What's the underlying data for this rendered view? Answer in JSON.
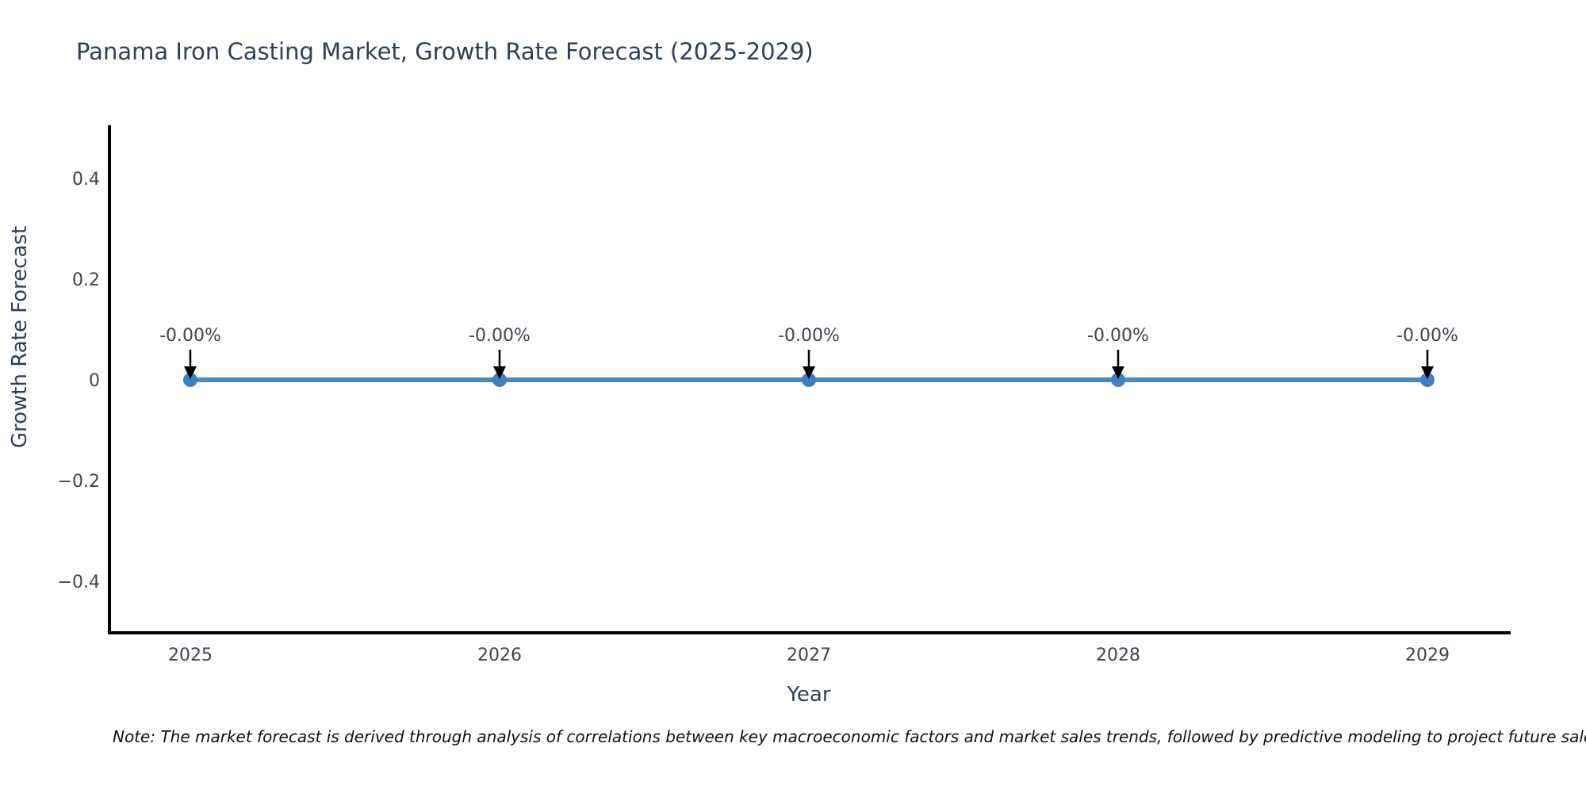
{
  "note": "Note: The market forecast is derived through analysis of correlations between key macroeconomic factors and market sales trends, followed by predictive modeling to project future sales",
  "chart_data": {
    "type": "line",
    "title": "Panama Iron Casting Market, Growth Rate Forecast (2025-2029)",
    "xlabel": "Year",
    "ylabel": "Growth Rate Forecast",
    "x": [
      2025,
      2026,
      2027,
      2028,
      2029
    ],
    "values": [
      0,
      0,
      0,
      0,
      0
    ],
    "point_labels": [
      "-0.00%",
      "-0.00%",
      "-0.00%",
      "-0.00%",
      "-0.00%"
    ],
    "xticks": [
      "2025",
      "2026",
      "2027",
      "2028",
      "2029"
    ],
    "yticks": [
      {
        "v": 0.4,
        "label": "0.4"
      },
      {
        "v": 0.2,
        "label": "0.2"
      },
      {
        "v": 0,
        "label": "0"
      },
      {
        "v": -0.2,
        "label": "−0.2"
      },
      {
        "v": -0.4,
        "label": "−0.4"
      }
    ],
    "ylim": [
      -0.5,
      0.5
    ],
    "grid": false,
    "legend": "none",
    "colors": {
      "line": "#4d88b8",
      "marker": "#3d80c0",
      "axis": "#000000",
      "arrow": "#000000",
      "tick_text": "#3d4451",
      "annotation_text": "#3d4451"
    }
  }
}
